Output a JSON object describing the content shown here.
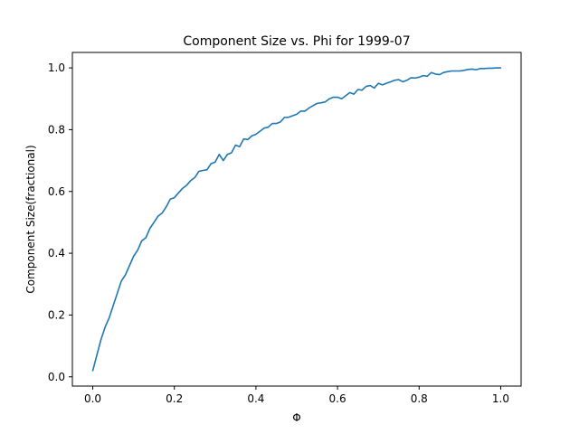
{
  "chart_data": {
    "type": "line",
    "title": "Component Size vs. Phi for 1999-07",
    "xlabel": "Φ",
    "ylabel": "Component Size(fractional)",
    "xlim": [
      -0.05,
      1.05
    ],
    "ylim": [
      -0.03,
      1.05
    ],
    "grid": false,
    "legend": "none",
    "xticks": [
      0.0,
      0.2,
      0.4,
      0.6,
      0.8,
      1.0
    ],
    "xtick_labels": [
      "0.0",
      "0.2",
      "0.4",
      "0.6",
      "0.8",
      "1.0"
    ],
    "yticks": [
      0.0,
      0.2,
      0.4,
      0.6,
      0.8,
      1.0
    ],
    "ytick_labels": [
      "0.0",
      "0.2",
      "0.4",
      "0.6",
      "0.8",
      "1.0"
    ],
    "series": [
      {
        "color": "#1f77b4",
        "x": [
          0.0,
          0.01,
          0.02,
          0.03,
          0.04,
          0.05,
          0.06,
          0.07,
          0.08,
          0.09,
          0.1,
          0.11,
          0.12,
          0.13,
          0.14,
          0.15,
          0.16,
          0.17,
          0.18,
          0.19,
          0.2,
          0.21,
          0.22,
          0.23,
          0.24,
          0.25,
          0.26,
          0.27,
          0.28,
          0.29,
          0.3,
          0.31,
          0.32,
          0.33,
          0.34,
          0.35,
          0.36,
          0.37,
          0.38,
          0.39,
          0.4,
          0.41,
          0.42,
          0.43,
          0.44,
          0.45,
          0.46,
          0.47,
          0.48,
          0.49,
          0.5,
          0.51,
          0.52,
          0.53,
          0.54,
          0.55,
          0.56,
          0.57,
          0.58,
          0.59,
          0.6,
          0.61,
          0.62,
          0.63,
          0.64,
          0.65,
          0.66,
          0.67,
          0.68,
          0.69,
          0.7,
          0.71,
          0.72,
          0.73,
          0.74,
          0.75,
          0.76,
          0.77,
          0.78,
          0.79,
          0.8,
          0.81,
          0.82,
          0.83,
          0.84,
          0.85,
          0.86,
          0.87,
          0.88,
          0.89,
          0.9,
          0.91,
          0.92,
          0.93,
          0.94,
          0.95,
          0.96,
          0.97,
          0.98,
          0.99,
          1.0
        ],
        "y": [
          0.02,
          0.07,
          0.12,
          0.16,
          0.19,
          0.23,
          0.27,
          0.31,
          0.33,
          0.36,
          0.39,
          0.41,
          0.44,
          0.45,
          0.48,
          0.5,
          0.52,
          0.53,
          0.55,
          0.575,
          0.58,
          0.595,
          0.61,
          0.62,
          0.635,
          0.645,
          0.665,
          0.668,
          0.67,
          0.69,
          0.695,
          0.72,
          0.7,
          0.72,
          0.725,
          0.75,
          0.745,
          0.77,
          0.768,
          0.78,
          0.785,
          0.795,
          0.805,
          0.808,
          0.82,
          0.82,
          0.825,
          0.84,
          0.84,
          0.845,
          0.85,
          0.86,
          0.86,
          0.87,
          0.878,
          0.885,
          0.887,
          0.89,
          0.9,
          0.905,
          0.905,
          0.9,
          0.91,
          0.92,
          0.915,
          0.93,
          0.928,
          0.94,
          0.943,
          0.935,
          0.95,
          0.945,
          0.95,
          0.955,
          0.96,
          0.962,
          0.955,
          0.96,
          0.968,
          0.967,
          0.97,
          0.975,
          0.973,
          0.985,
          0.98,
          0.978,
          0.985,
          0.988,
          0.99,
          0.99,
          0.99,
          0.992,
          0.995,
          0.996,
          0.994,
          0.998,
          0.998,
          0.999,
          0.999,
          1.0,
          1.0
        ]
      }
    ]
  }
}
